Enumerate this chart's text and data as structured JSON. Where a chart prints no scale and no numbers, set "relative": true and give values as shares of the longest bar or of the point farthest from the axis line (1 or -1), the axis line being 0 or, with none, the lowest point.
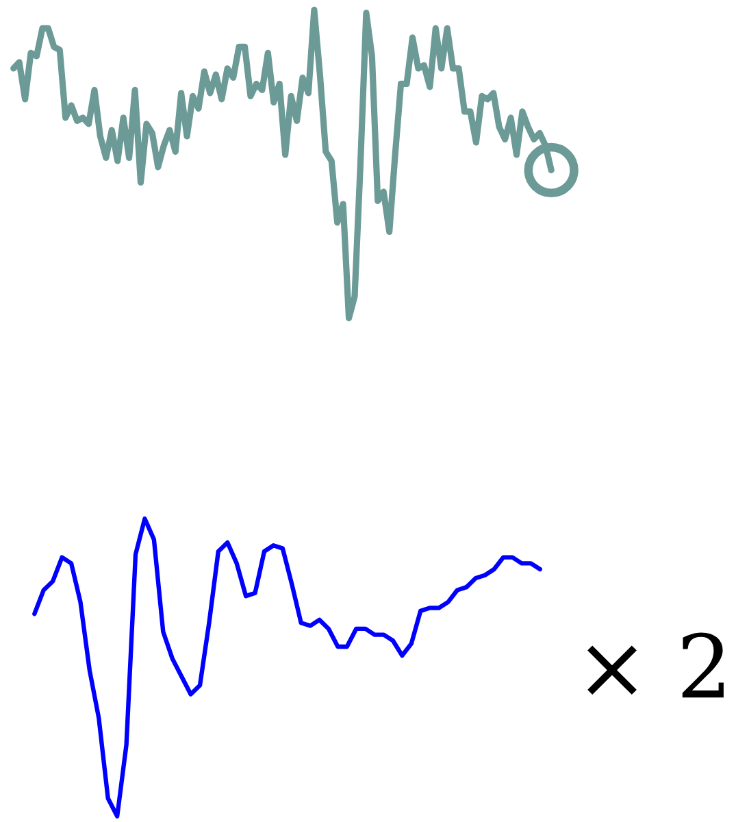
{
  "chart_data": [
    {
      "type": "line",
      "relative": true,
      "categories": [
        null,
        null,
        null,
        null,
        null,
        null,
        null,
        null,
        null,
        null,
        null,
        null,
        null,
        null,
        null,
        null,
        null,
        null,
        null,
        null,
        null,
        null,
        null,
        null,
        null,
        null,
        null,
        null,
        null,
        null,
        null,
        null,
        null,
        null,
        null,
        null,
        null,
        null,
        null,
        null,
        null,
        null,
        null,
        null,
        null,
        null,
        null,
        null,
        null,
        null,
        null,
        null,
        null,
        null,
        null,
        null,
        null,
        null,
        null,
        null,
        null,
        null,
        null,
        null,
        null,
        null,
        null,
        null,
        null,
        null,
        null,
        null,
        null,
        null,
        null,
        null,
        null,
        null,
        null,
        null,
        null,
        null,
        null,
        null,
        null,
        null,
        null,
        null,
        null,
        null,
        null,
        null,
        null,
        null
      ],
      "series": [
        {
          "color": "#6b9a97",
          "values": [
            0.81,
            0.83,
            0.71,
            0.86,
            0.85,
            0.94,
            0.94,
            0.88,
            0.87,
            0.65,
            0.69,
            0.64,
            0.65,
            0.63,
            0.74,
            0.59,
            0.52,
            0.61,
            0.51,
            0.65,
            0.52,
            0.74,
            0.44,
            0.63,
            0.6,
            0.49,
            0.56,
            0.61,
            0.54,
            0.73,
            0.59,
            0.72,
            0.68,
            0.8,
            0.73,
            0.79,
            0.71,
            0.81,
            0.78,
            0.88,
            0.88,
            0.72,
            0.76,
            0.74,
            0.86,
            0.7,
            0.76,
            0.53,
            0.72,
            0.64,
            0.78,
            0.73,
            1.0,
            0.79,
            0.54,
            0.51,
            0.31,
            0.37,
            0,
            0.07,
            0.5,
            0.99,
            0.85,
            0.38,
            0.41,
            0.28,
            0.53,
            0.76,
            0.76,
            0.91,
            0.81,
            0.82,
            0.75,
            0.94,
            0.81,
            0.94,
            0.81,
            0.81,
            0.67,
            0.67,
            0.57,
            0.72,
            0.71,
            0.73,
            0.62,
            0.58,
            0.65,
            0.53,
            0.67,
            0.62,
            0.58,
            0.6,
            0.56,
            0.48
          ]
        }
      ]
    },
    {
      "type": "line",
      "relative": true,
      "annotations": [
        "× 2"
      ],
      "categories": [
        null,
        null,
        null,
        null,
        null,
        null,
        null,
        null,
        null,
        null,
        null,
        null,
        null,
        null,
        null,
        null,
        null,
        null,
        null,
        null,
        null,
        null,
        null,
        null,
        null,
        null,
        null,
        null,
        null,
        null,
        null,
        null,
        null,
        null,
        null,
        null,
        null,
        null,
        null,
        null,
        null,
        null,
        null,
        null,
        null,
        null,
        null,
        null,
        null,
        null,
        null,
        null,
        null,
        null,
        null,
        null
      ],
      "series": [
        {
          "color": "#0000ff",
          "values": [
            0.68,
            0.76,
            0.79,
            0.87,
            0.85,
            0.72,
            0.49,
            0.33,
            0.06,
            0,
            0.24,
            0.88,
            1.0,
            0.93,
            0.62,
            0.53,
            0.47,
            0.41,
            0.44,
            0.65,
            0.89,
            0.92,
            0.85,
            0.74,
            0.75,
            0.89,
            0.91,
            0.9,
            0.78,
            0.65,
            0.64,
            0.66,
            0.63,
            0.57,
            0.57,
            0.63,
            0.63,
            0.61,
            0.61,
            0.59,
            0.54,
            0.58,
            0.69,
            0.7,
            0.7,
            0.72,
            0.76,
            0.77,
            0.8,
            0.81,
            0.83,
            0.87,
            0.87,
            0.85,
            0.85,
            0.83
          ]
        }
      ]
    }
  ]
}
